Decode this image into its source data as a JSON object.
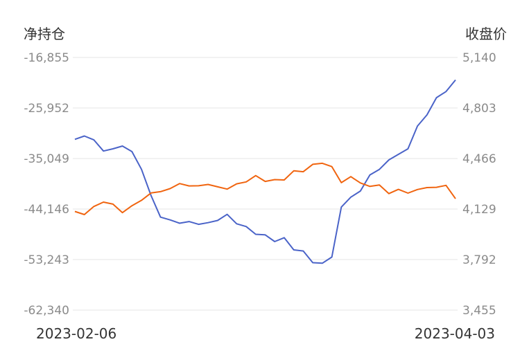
{
  "chart_data": {
    "type": "line",
    "left_axis_title": "净持仓",
    "right_axis_title": "收盘价",
    "left_ticks": [
      "-16,855",
      "-25,952",
      "-35,049",
      "-44,146",
      "-53,243",
      "-62,340"
    ],
    "right_ticks": [
      "5,140",
      "4,803",
      "4,466",
      "4,129",
      "3,792",
      "3,455"
    ],
    "left_range": [
      -62340,
      -16855
    ],
    "right_range": [
      3455,
      5140
    ],
    "x_start_label": "2023-02-06",
    "x_end_label": "2023-04-03",
    "grid": true,
    "legend": "none",
    "series": [
      {
        "axis": "left",
        "color": "#4a63c8",
        "values": [
          -31600,
          -31000,
          -31700,
          -33700,
          -33300,
          -32800,
          -33800,
          -37000,
          -41700,
          -45600,
          -46100,
          -46700,
          -46400,
          -46900,
          -46600,
          -46200,
          -45100,
          -46800,
          -47300,
          -48700,
          -48800,
          -50000,
          -49300,
          -51500,
          -51700,
          -53800,
          -53900,
          -52800,
          -43800,
          -42000,
          -40900,
          -38000,
          -37000,
          -35300,
          -34300,
          -33300,
          -29200,
          -27200,
          -24100,
          -23000,
          -20900
        ]
      },
      {
        "axis": "right",
        "color": "#f0640f",
        "values": [
          4113,
          4092,
          4146,
          4175,
          4162,
          4105,
          4151,
          4187,
          4236,
          4245,
          4265,
          4299,
          4283,
          4284,
          4293,
          4277,
          4262,
          4297,
          4310,
          4352,
          4313,
          4325,
          4323,
          4384,
          4378,
          4427,
          4434,
          4412,
          4305,
          4345,
          4303,
          4280,
          4289,
          4232,
          4260,
          4235,
          4259,
          4272,
          4274,
          4287,
          4198
        ]
      }
    ]
  }
}
